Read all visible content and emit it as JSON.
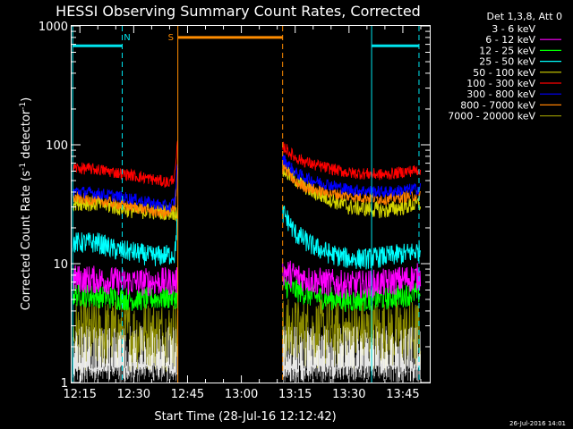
{
  "colors": {
    "background": "#000000",
    "axes": "#ffffff",
    "text": "#ffffff",
    "attenuator_marker": "#ff8c00",
    "night_marker": "#00e5ee"
  },
  "chart_data": {
    "type": "line",
    "title": "HESSI Observing Summary Count Rates, Corrected",
    "xlabel": "Start Time (28-Jul-16 12:12:42)",
    "ylabel": "Corrected Count Rate (s⁻¹ detector⁻¹)",
    "ylabel_main": "Corrected Count Rate (s",
    "ylabel_sup1": "-1",
    "ylabel_mid": " detector",
    "ylabel_sup2": "-1",
    "ylabel_end": ")",
    "y_scale": "log",
    "ylim": [
      1,
      1000
    ],
    "y_ticks": [
      1,
      10,
      100,
      1000
    ],
    "y_tick_labels": [
      "1",
      "10",
      "100",
      "1000"
    ],
    "xlim": [
      "12:12:42",
      "13:52:30"
    ],
    "x_ticks": [
      "12:15",
      "12:30",
      "12:45",
      "13:00",
      "13:15",
      "13:30",
      "13:45"
    ],
    "x_ticks_minutes": [
      735,
      750,
      765,
      780,
      795,
      810,
      825
    ],
    "x_range_minutes": [
      732.7,
      832.5
    ],
    "legend_title": "Det 1,3,8, Att 0",
    "legend_position": "right",
    "timestamp": "26-Jul-2016 14:01",
    "data_gaps_minutes": [
      [
        762.3,
        791.5
      ]
    ],
    "series": [
      {
        "name": "3 - 6 keV",
        "color": "#000000",
        "x_minutes": [
          733,
          762,
          792,
          830
        ],
        "values": [
          1.5,
          1.5,
          1.5,
          1.5
        ]
      },
      {
        "name": "6 - 12 keV",
        "color": "#ff00ff",
        "x_minutes": [
          733,
          740,
          750,
          761.5,
          792,
          800,
          810,
          820,
          830
        ],
        "values": [
          7.5,
          7.3,
          7.0,
          7.1,
          8.5,
          7.2,
          6.6,
          6.9,
          7.8
        ]
      },
      {
        "name": "12 - 25 keV",
        "color": "#00ff00",
        "x_minutes": [
          733,
          740,
          750,
          761.5,
          792,
          800,
          810,
          820,
          830
        ],
        "values": [
          5.5,
          5.3,
          5.0,
          5.2,
          6.5,
          5.3,
          4.9,
          5.1,
          5.7
        ]
      },
      {
        "name": "25 - 50 keV",
        "color": "#00ffff",
        "x_minutes": [
          733,
          740,
          745,
          750,
          755,
          761.5,
          762.2,
          792,
          795,
          800,
          805,
          810,
          815,
          820,
          825,
          830
        ],
        "values": [
          15,
          15,
          13,
          12.5,
          11.5,
          12,
          25,
          26,
          18,
          14,
          12,
          11,
          11,
          11.5,
          12,
          13
        ]
      },
      {
        "name": "50 - 100 keV",
        "color": "#d4d400",
        "x_minutes": [
          733,
          740,
          750,
          761.5,
          792,
          800,
          810,
          820,
          830
        ],
        "values": [
          33,
          32,
          28,
          27,
          60,
          40,
          30,
          28,
          32
        ]
      },
      {
        "name": "100 - 300 keV",
        "color": "#ff0000",
        "x_minutes": [
          733,
          740,
          750,
          760,
          761.5,
          762.2,
          792,
          795,
          800,
          810,
          820,
          830
        ],
        "values": [
          64,
          62,
          55,
          48,
          55,
          100,
          95,
          78,
          68,
          58,
          56,
          62
        ]
      },
      {
        "name": "300 - 800 keV",
        "color": "#0000ff",
        "x_minutes": [
          733,
          740,
          750,
          760,
          761.5,
          762.2,
          792,
          795,
          800,
          810,
          820,
          830
        ],
        "values": [
          41,
          39,
          35,
          30,
          34,
          70,
          75,
          58,
          50,
          42,
          40,
          43
        ]
      },
      {
        "name": "800 - 7000 keV",
        "color": "#ff8000",
        "x_minutes": [
          733,
          740,
          750,
          760,
          761.5,
          762.2,
          792,
          795,
          800,
          810,
          820,
          830
        ],
        "values": [
          36,
          34,
          30,
          26,
          30,
          63,
          65,
          48,
          42,
          37,
          35,
          38
        ]
      },
      {
        "name": "7000 - 20000 keV",
        "color": "#8b8b00",
        "x_minutes": [
          733,
          762,
          792,
          830
        ],
        "values": [
          2.5,
          2.5,
          2.6,
          2.5
        ]
      }
    ],
    "annotations": [
      {
        "type": "attenuator",
        "label": "S",
        "color": "#ff8c00",
        "solid_line_minutes": 762.3,
        "dashed_line_minutes": 791.5,
        "level": 800
      },
      {
        "type": "night",
        "label": "N",
        "color": "#00e5ee",
        "solid_line_minutes": 733.0,
        "dashed_line_minutes": 746.8,
        "level": 680
      },
      {
        "type": "night",
        "label": "",
        "color": "#00e5ee",
        "solid_line_minutes": 816.3,
        "dashed_line_minutes": 829.5,
        "level": 680
      }
    ]
  }
}
